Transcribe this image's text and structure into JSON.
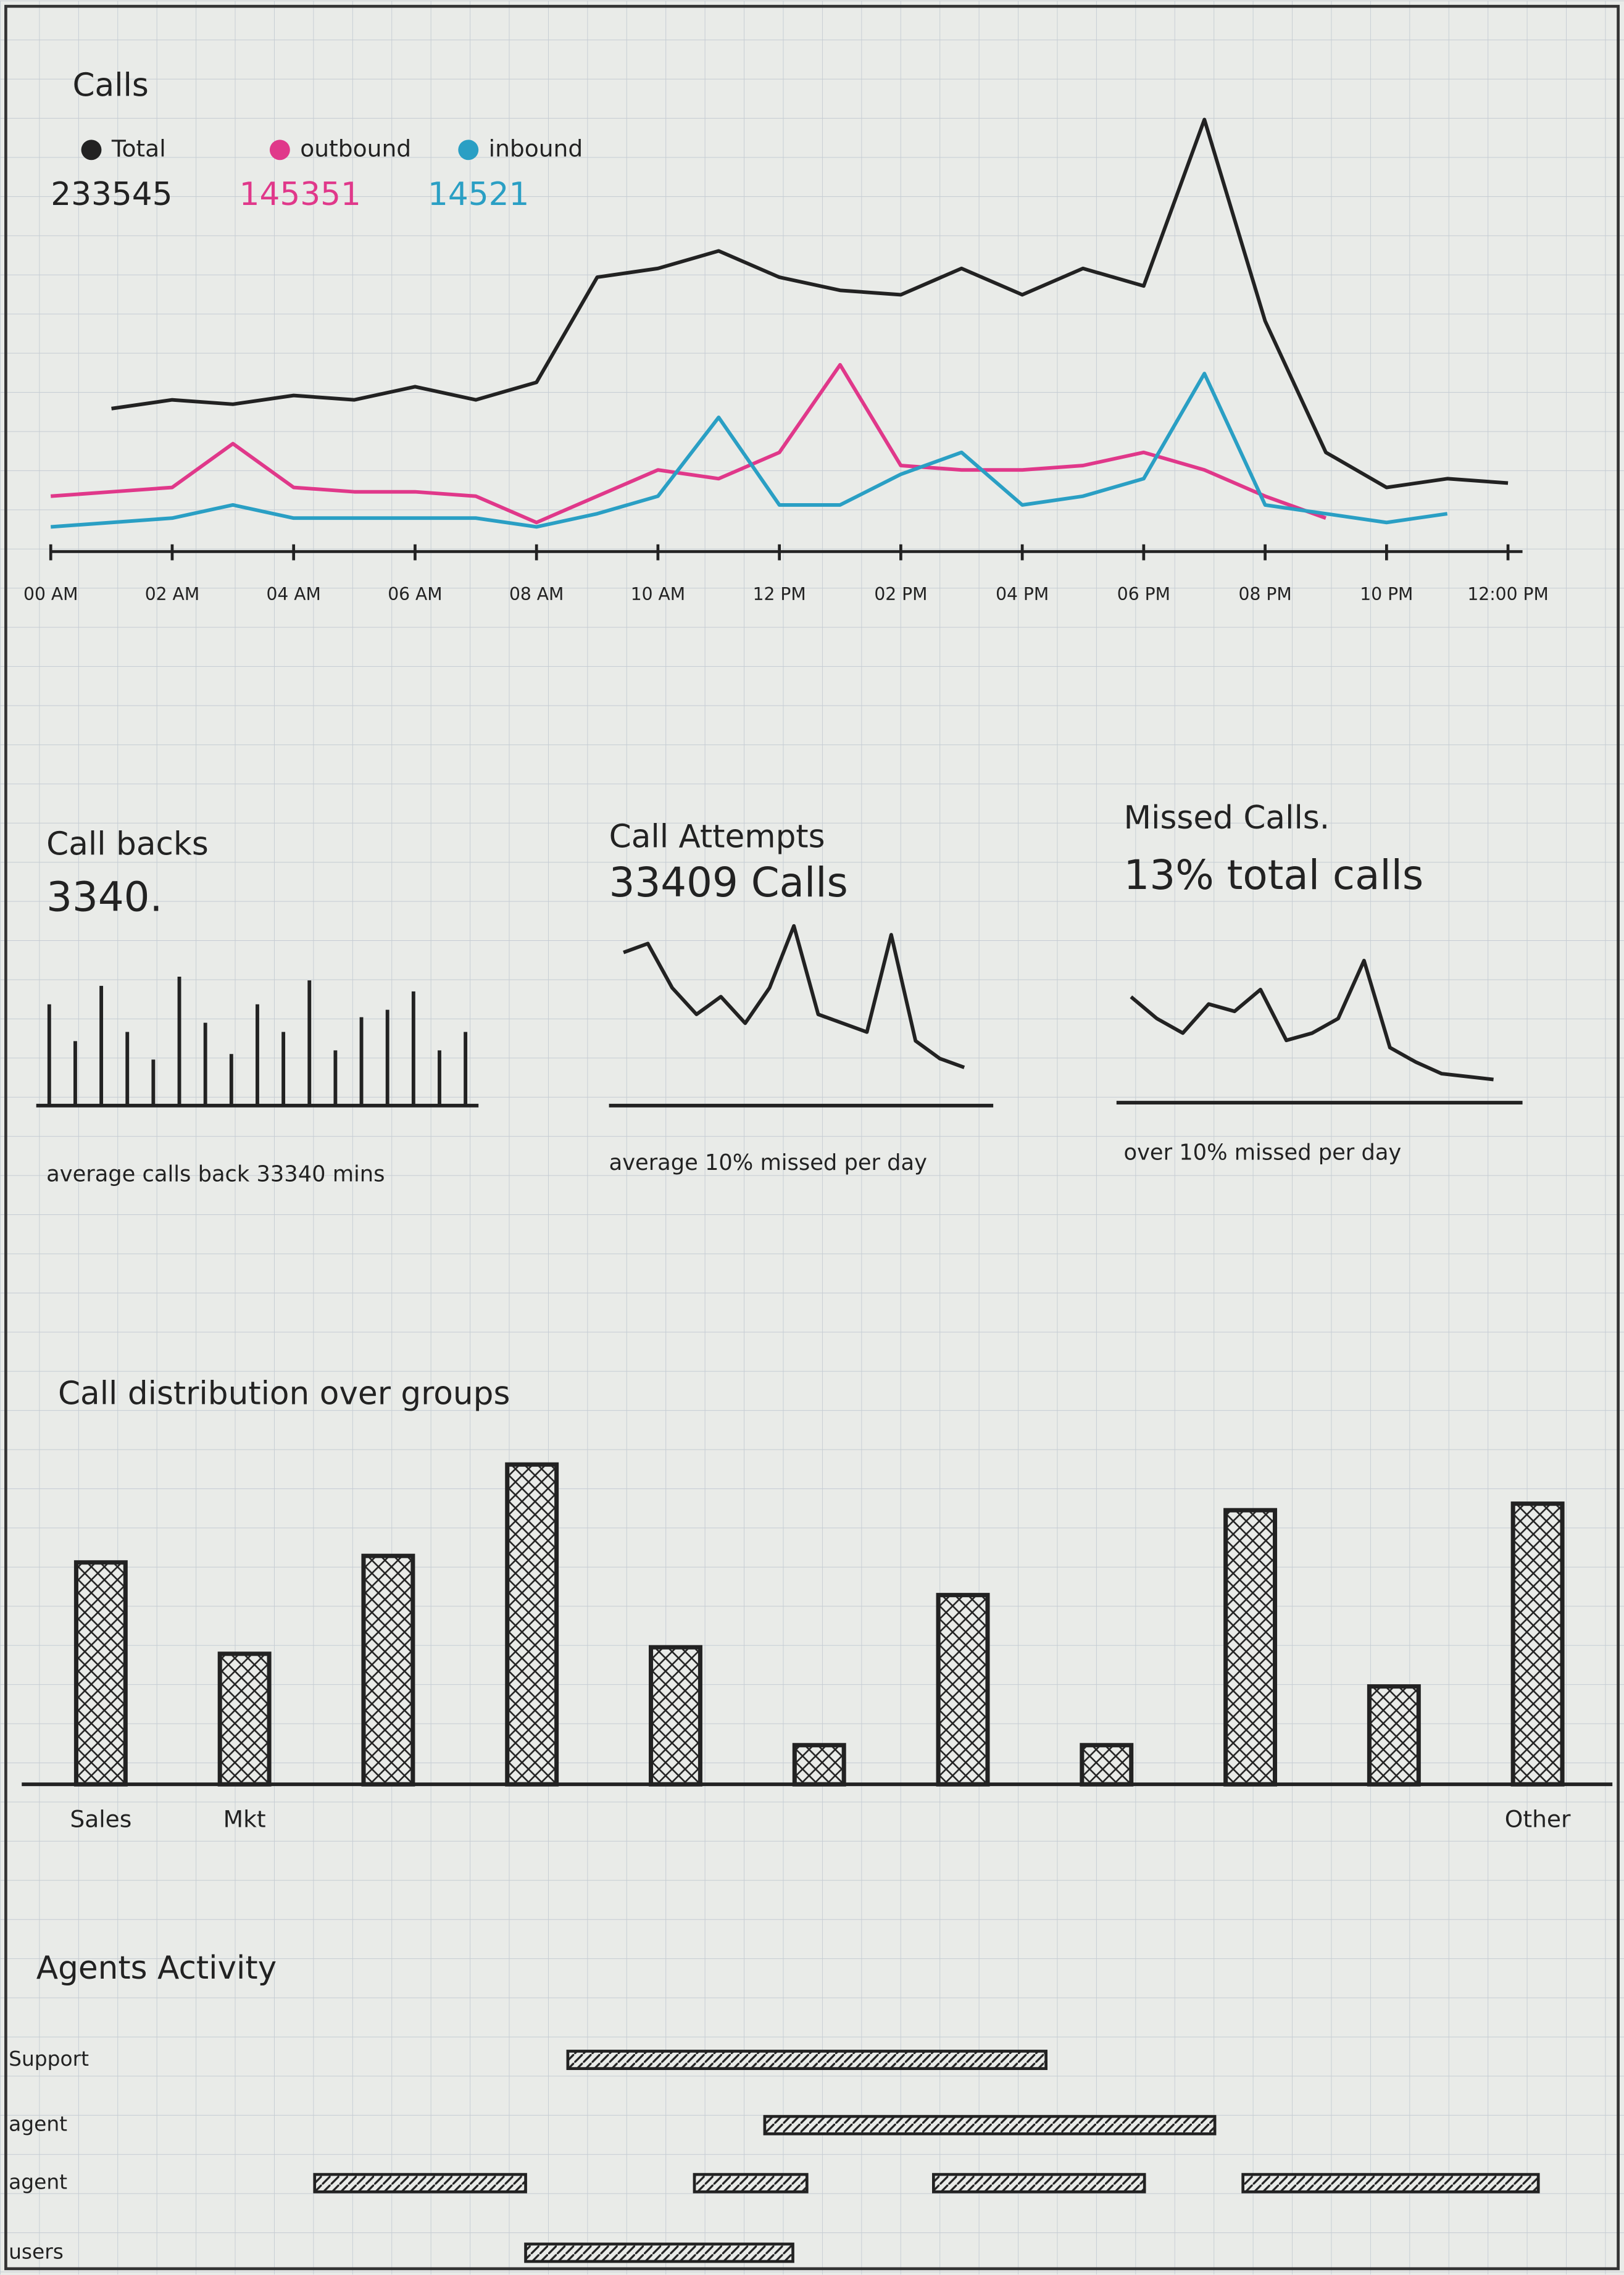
{
  "chart_data": [
    {
      "type": "line",
      "title": "Calls",
      "x": [
        0,
        1,
        2,
        3,
        4,
        5,
        6,
        7,
        8,
        9,
        10,
        11,
        12,
        13,
        14,
        15,
        16,
        17,
        18,
        19,
        20,
        21,
        22,
        23,
        24
      ],
      "xlim": [
        0,
        24
      ],
      "ylim": [
        0,
        100
      ],
      "xticks": [
        {
          "value": 0,
          "label": "00 AM"
        },
        {
          "value": 2,
          "label": "02 AM"
        },
        {
          "value": 4,
          "label": "04 AM"
        },
        {
          "value": 6,
          "label": "06 AM"
        },
        {
          "value": 8,
          "label": "08 AM"
        },
        {
          "value": 10,
          "label": "10 AM"
        },
        {
          "value": 12,
          "label": "12 PM"
        },
        {
          "value": 14,
          "label": "02 PM"
        },
        {
          "value": 16,
          "label": "04 PM"
        },
        {
          "value": 18,
          "label": "06 PM"
        },
        {
          "value": 20,
          "label": "08 PM"
        },
        {
          "value": 22,
          "label": "10 PM"
        },
        {
          "value": 24,
          "label": "12:00 PM"
        }
      ],
      "series": [
        {
          "name": "Total",
          "color": "#222222",
          "summary": "233545",
          "values": [
            null,
            30,
            32,
            31,
            33,
            32,
            35,
            32,
            36,
            60,
            62,
            66,
            60,
            57,
            56,
            62,
            56,
            62,
            58,
            96,
            50,
            20,
            12,
            14,
            13
          ]
        },
        {
          "name": "outbound",
          "color": "#e0388a",
          "summary": "145351",
          "values": [
            10,
            11,
            12,
            22,
            12,
            11,
            11,
            10,
            4,
            10,
            16,
            14,
            20,
            40,
            17,
            16,
            16,
            17,
            20,
            16,
            10,
            5,
            null,
            null,
            null
          ]
        },
        {
          "name": "inbound",
          "color": "#2a9fc4",
          "summary": "14521",
          "values": [
            3,
            4,
            5,
            8,
            5,
            5,
            5,
            5,
            3,
            6,
            10,
            28,
            8,
            8,
            15,
            20,
            8,
            10,
            14,
            38,
            8,
            6,
            4,
            6,
            null
          ]
        }
      ]
    },
    {
      "type": "stem",
      "title": "Call backs",
      "headline": "3340.",
      "caption": "average calls back 33340 mins",
      "ylim": [
        0,
        100
      ],
      "values": [
        55,
        35,
        65,
        40,
        25,
        70,
        45,
        28,
        55,
        40,
        68,
        30,
        48,
        52,
        62,
        30,
        40
      ]
    },
    {
      "type": "spark",
      "title": "Call Attempts",
      "headline": "33409 Calls",
      "caption": "average 10% missed per day",
      "ylim": [
        0,
        100
      ],
      "values": [
        80,
        85,
        60,
        45,
        55,
        40,
        60,
        95,
        45,
        40,
        35,
        90,
        30,
        20,
        15
      ]
    },
    {
      "type": "spark",
      "title": "Missed Calls.",
      "headline": "13% total calls",
      "caption": "over 10% missed per day",
      "ylim": [
        0,
        100
      ],
      "values": [
        65,
        50,
        40,
        60,
        55,
        70,
        35,
        40,
        50,
        90,
        30,
        20,
        12,
        10,
        8
      ]
    },
    {
      "type": "bar",
      "title": "Call distribution over groups",
      "color": "#222222",
      "ylim": [
        0,
        100
      ],
      "categories": [
        "Sales",
        "Mkt",
        null,
        null,
        null,
        null,
        null,
        null,
        null,
        null,
        "Other"
      ],
      "values": [
        68,
        40,
        70,
        98,
        42,
        12,
        58,
        12,
        84,
        30,
        86
      ]
    },
    {
      "type": "timeline",
      "title": "Agents Activity",
      "xlim": [
        0,
        100
      ],
      "rows": [
        {
          "name": "Support",
          "spans": [
            [
              28,
              62
            ]
          ]
        },
        {
          "name": "agent",
          "spans": [
            [
              42,
              74
            ]
          ]
        },
        {
          "name": "agent",
          "spans": [
            [
              10,
              25
            ],
            [
              37,
              45
            ],
            [
              54,
              69
            ],
            [
              76,
              97
            ]
          ]
        },
        {
          "name": "users",
          "spans": [
            [
              25,
              44
            ]
          ]
        }
      ]
    }
  ]
}
